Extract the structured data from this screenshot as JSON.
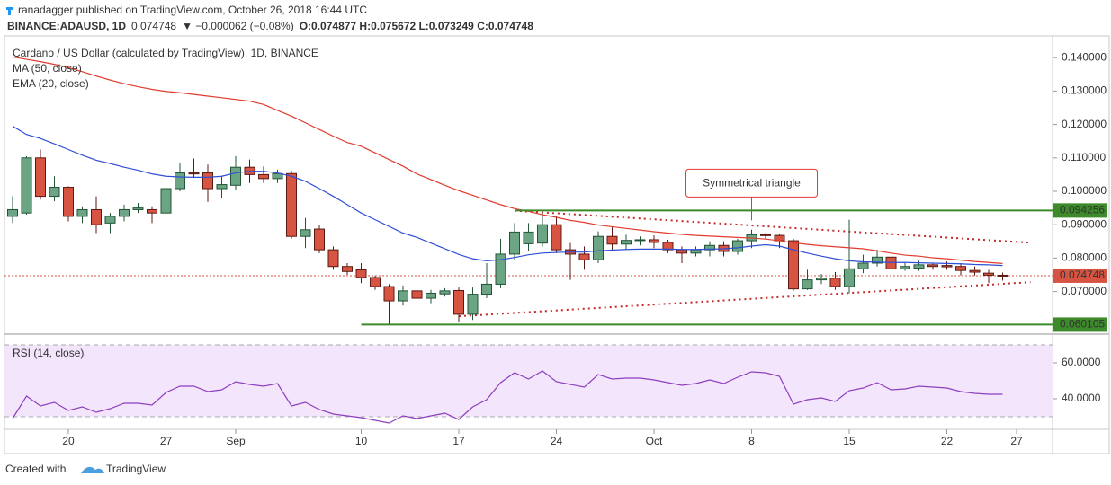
{
  "header": {
    "author": "ranadagger published on TradingView.com, October 26, 2018 16:44 UTC",
    "symbol": "BINANCE:ADAUSD, 1D",
    "last": "0.074748",
    "change": "▼ −0.000062 (−0.08%)",
    "ohlc": "O:0.074877 H:0.075672 L:0.073249 C:0.074748"
  },
  "footer": {
    "created": "Created with",
    "brand": "TradingView"
  },
  "chart_data": {
    "type": "candlestick",
    "title": "Cardano / US Dollar (calculated by TradingView), 1D, BINANCE",
    "up_color": "#6ba583",
    "down_color": "#d75442",
    "x": [
      "2018-08-16",
      "2018-08-17",
      "2018-08-18",
      "2018-08-19",
      "2018-08-20",
      "2018-08-21",
      "2018-08-22",
      "2018-08-23",
      "2018-08-24",
      "2018-08-25",
      "2018-08-26",
      "2018-08-27",
      "2018-08-28",
      "2018-08-29",
      "2018-08-30",
      "2018-08-31",
      "2018-09-01",
      "2018-09-02",
      "2018-09-03",
      "2018-09-04",
      "2018-09-05",
      "2018-09-06",
      "2018-09-07",
      "2018-09-08",
      "2018-09-09",
      "2018-09-10",
      "2018-09-11",
      "2018-09-12",
      "2018-09-13",
      "2018-09-14",
      "2018-09-15",
      "2018-09-16",
      "2018-09-17",
      "2018-09-18",
      "2018-09-19",
      "2018-09-20",
      "2018-09-21",
      "2018-09-22",
      "2018-09-23",
      "2018-09-24",
      "2018-09-25",
      "2018-09-26",
      "2018-09-27",
      "2018-09-28",
      "2018-09-29",
      "2018-09-30",
      "2018-10-01",
      "2018-10-02",
      "2018-10-03",
      "2018-10-04",
      "2018-10-05",
      "2018-10-06",
      "2018-10-07",
      "2018-10-08",
      "2018-10-09",
      "2018-10-10",
      "2018-10-11",
      "2018-10-12",
      "2018-10-13",
      "2018-10-14",
      "2018-10-15",
      "2018-10-16",
      "2018-10-17",
      "2018-10-18",
      "2018-10-19",
      "2018-10-20",
      "2018-10-21",
      "2018-10-22",
      "2018-10-23",
      "2018-10-24",
      "2018-10-25",
      "2018-10-26"
    ],
    "open": [
      0.0925,
      0.0935,
      0.11,
      0.0985,
      0.1012,
      0.0925,
      0.0945,
      0.0905,
      0.0925,
      0.0945,
      0.0945,
      0.0935,
      0.1008,
      0.1055,
      0.1055,
      0.1008,
      0.1018,
      0.1072,
      0.105,
      0.1038,
      0.1053,
      0.0865,
      0.0887,
      0.0825,
      0.0775,
      0.0765,
      0.0742,
      0.0715,
      0.0672,
      0.0702,
      0.068,
      0.0693,
      0.0703,
      0.0632,
      0.0692,
      0.0722,
      0.0812,
      0.0843,
      0.0845,
      0.09,
      0.0825,
      0.0812,
      0.0795,
      0.0865,
      0.0842,
      0.0853,
      0.0855,
      0.0847,
      0.0825,
      0.0815,
      0.0825,
      0.0838,
      0.082,
      0.0852,
      0.087,
      0.0868,
      0.0852,
      0.0708,
      0.0735,
      0.074,
      0.0715,
      0.0768,
      0.0785,
      0.0803,
      0.0768,
      0.077,
      0.078,
      0.0778,
      0.0775,
      0.0763,
      0.0755,
      0.074877
    ],
    "high": [
      0.0985,
      0.1105,
      0.1125,
      0.1045,
      0.1015,
      0.0955,
      0.0985,
      0.0935,
      0.096,
      0.0965,
      0.0955,
      0.1025,
      0.1085,
      0.1098,
      0.108,
      0.1045,
      0.1105,
      0.1095,
      0.1075,
      0.1065,
      0.1062,
      0.092,
      0.09,
      0.0835,
      0.0785,
      0.0785,
      0.0748,
      0.0722,
      0.0718,
      0.0715,
      0.0705,
      0.071,
      0.0712,
      0.0712,
      0.0785,
      0.0858,
      0.0905,
      0.0905,
      0.0935,
      0.0925,
      0.0845,
      0.0835,
      0.088,
      0.0895,
      0.087,
      0.0865,
      0.0868,
      0.0855,
      0.0835,
      0.0835,
      0.085,
      0.085,
      0.0858,
      0.0885,
      0.0875,
      0.0872,
      0.0858,
      0.0765,
      0.0752,
      0.0758,
      0.0915,
      0.081,
      0.0825,
      0.0812,
      0.0785,
      0.0792,
      0.0785,
      0.079,
      0.0785,
      0.0775,
      0.0765,
      0.075672
    ],
    "low": [
      0.0905,
      0.093,
      0.0975,
      0.097,
      0.091,
      0.0905,
      0.0875,
      0.0875,
      0.091,
      0.0935,
      0.0905,
      0.0925,
      0.1,
      0.104,
      0.0968,
      0.098,
      0.1005,
      0.1025,
      0.1025,
      0.1025,
      0.0858,
      0.083,
      0.0815,
      0.0765,
      0.075,
      0.0725,
      0.0705,
      0.0602,
      0.0658,
      0.0655,
      0.0665,
      0.0685,
      0.0608,
      0.0615,
      0.068,
      0.071,
      0.0795,
      0.0822,
      0.0835,
      0.0815,
      0.0735,
      0.0765,
      0.0785,
      0.0825,
      0.0825,
      0.0838,
      0.083,
      0.0815,
      0.0785,
      0.0805,
      0.0805,
      0.0805,
      0.081,
      0.083,
      0.0858,
      0.083,
      0.0702,
      0.0705,
      0.0722,
      0.0705,
      0.0695,
      0.0755,
      0.0775,
      0.0755,
      0.0762,
      0.0762,
      0.0765,
      0.0765,
      0.0748,
      0.0748,
      0.0725,
      0.073249
    ],
    "close": [
      0.0945,
      0.11,
      0.0985,
      0.1012,
      0.0925,
      0.0945,
      0.09,
      0.0925,
      0.0945,
      0.095,
      0.0935,
      0.1008,
      0.1055,
      0.1052,
      0.1008,
      0.102,
      0.1072,
      0.105,
      0.1038,
      0.1053,
      0.0865,
      0.0885,
      0.0825,
      0.0775,
      0.076,
      0.0742,
      0.0715,
      0.0672,
      0.0702,
      0.068,
      0.0695,
      0.0702,
      0.0632,
      0.0692,
      0.0722,
      0.0812,
      0.0878,
      0.0878,
      0.09,
      0.0825,
      0.0812,
      0.0795,
      0.0865,
      0.0842,
      0.0853,
      0.0855,
      0.0847,
      0.0825,
      0.0815,
      0.0825,
      0.0838,
      0.082,
      0.0852,
      0.087,
      0.0868,
      0.0852,
      0.0708,
      0.0735,
      0.074,
      0.0715,
      0.0768,
      0.0785,
      0.0803,
      0.0768,
      0.0775,
      0.078,
      0.0775,
      0.0774,
      0.0763,
      0.0758,
      0.0749,
      0.074748
    ],
    "series": [
      {
        "name": "MA (50, close)",
        "color": "#e23b2e",
        "values": [
          0.1402,
          0.1395,
          0.1388,
          0.138,
          0.137,
          0.1358,
          0.1345,
          0.1333,
          0.1322,
          0.1313,
          0.1305,
          0.1299,
          0.1295,
          0.129,
          0.1285,
          0.128,
          0.1275,
          0.127,
          0.126,
          0.1242,
          0.1225,
          0.1205,
          0.1185,
          0.1165,
          0.1146,
          0.1135,
          0.1115,
          0.1095,
          0.1075,
          0.1052,
          0.1035,
          0.1018,
          0.1002,
          0.0988,
          0.0974,
          0.096,
          0.0948,
          0.094,
          0.093,
          0.0922,
          0.0913,
          0.0907,
          0.0899,
          0.0894,
          0.0889,
          0.0884,
          0.0879,
          0.0875,
          0.0871,
          0.0868,
          0.0866,
          0.0864,
          0.0862,
          0.086,
          0.0857,
          0.0852,
          0.0846,
          0.0841,
          0.0837,
          0.0834,
          0.0831,
          0.0828,
          0.0822,
          0.0815,
          0.0809,
          0.0806,
          0.0801,
          0.0798,
          0.0794,
          0.079,
          0.0787,
          0.0784
        ]
      },
      {
        "name": "EMA (20, close)",
        "color": "#2f4fd6",
        "values": [
          0.1195,
          0.117,
          0.1158,
          0.1142,
          0.1125,
          0.1108,
          0.1093,
          0.1083,
          0.1072,
          0.1063,
          0.1052,
          0.1045,
          0.1043,
          0.1042,
          0.1042,
          0.1045,
          0.1055,
          0.106,
          0.106,
          0.1055,
          0.1045,
          0.103,
          0.1008,
          0.0985,
          0.096,
          0.0935,
          0.0915,
          0.0895,
          0.0875,
          0.0862,
          0.0845,
          0.0828,
          0.0811,
          0.0798,
          0.0792,
          0.0795,
          0.0802,
          0.081,
          0.0815,
          0.0817,
          0.0818,
          0.0818,
          0.0822,
          0.0824,
          0.0826,
          0.0827,
          0.0827,
          0.0827,
          0.0826,
          0.0826,
          0.0827,
          0.0828,
          0.0831,
          0.0836,
          0.084,
          0.0836,
          0.0825,
          0.0815,
          0.0806,
          0.0798,
          0.0792,
          0.0789,
          0.0788,
          0.0787,
          0.0787,
          0.0786,
          0.0785,
          0.0784,
          0.0783,
          0.0781,
          0.078,
          0.0778
        ]
      }
    ],
    "xlim": [
      "2018-08-15",
      "2018-10-30"
    ],
    "xticks": [
      {
        "value": "2018-08-20",
        "label": "20"
      },
      {
        "value": "2018-08-27",
        "label": "27"
      },
      {
        "value": "2018-09-01",
        "label": "Sep"
      },
      {
        "value": "2018-09-10",
        "label": "10"
      },
      {
        "value": "2018-09-17",
        "label": "17"
      },
      {
        "value": "2018-09-24",
        "label": "24"
      },
      {
        "value": "2018-10-01",
        "label": "Oct"
      },
      {
        "value": "2018-10-08",
        "label": "8"
      },
      {
        "value": "2018-10-15",
        "label": "15"
      },
      {
        "value": "2018-10-22",
        "label": "22"
      },
      {
        "value": "2018-10-27",
        "label": "27"
      }
    ],
    "ylim": [
      0.0578,
      0.1465
    ],
    "yticks": [
      {
        "value": 0.07,
        "label": "0.070000"
      },
      {
        "value": 0.08,
        "label": "0.080000"
      },
      {
        "value": 0.09,
        "label": "0.090000"
      },
      {
        "value": 0.1,
        "label": "0.100000"
      },
      {
        "value": 0.11,
        "label": "0.110000"
      },
      {
        "value": 0.12,
        "label": "0.120000"
      },
      {
        "value": 0.13,
        "label": "0.130000"
      },
      {
        "value": 0.14,
        "label": "0.140000"
      }
    ],
    "levels": [
      {
        "value": 0.094256,
        "start": "2018-09-21",
        "color": "#3c8a2a"
      },
      {
        "value": 0.060105,
        "start": "2018-09-10",
        "color": "#3c8a2a"
      }
    ],
    "trendlines": [
      {
        "x": [
          "2018-09-21",
          "2018-10-28"
        ],
        "y": [
          0.0942,
          0.0846
        ],
        "color": "#c62828"
      },
      {
        "x": [
          "2018-09-17",
          "2018-10-28"
        ],
        "y": [
          0.0626,
          0.0728
        ],
        "color": "#c62828"
      }
    ],
    "annotation": {
      "text": "Symmetrical triangle",
      "x": "2018-10-08",
      "y": 0.0913,
      "color": "#e53935"
    },
    "rsi": {
      "name": "RSI (14, close)",
      "color": "#8e3fbf",
      "band_color": "#f3e5fb",
      "values": [
        29,
        41.5,
        36,
        38,
        33.5,
        35.5,
        32.5,
        34.5,
        37.5,
        37.5,
        36.5,
        43.5,
        47,
        47,
        44,
        45,
        49.5,
        48,
        47,
        48.5,
        36,
        38,
        34,
        31.5,
        30.5,
        29.5,
        28,
        26.5,
        30.5,
        29,
        30.5,
        32,
        28.5,
        35.5,
        39.5,
        49,
        54.5,
        51,
        55.5,
        49.5,
        48,
        46.5,
        53.5,
        51,
        51.5,
        51.5,
        50.5,
        49,
        47.5,
        48.5,
        50.5,
        48.5,
        52,
        55,
        54.5,
        52.5,
        37,
        39.5,
        40.5,
        38.5,
        44.5,
        46,
        49,
        45,
        45.5,
        47,
        46.5,
        46,
        44,
        43,
        42.5,
        42.5
      ],
      "ylim": [
        23,
        75.5
      ],
      "bands": [
        30,
        70
      ],
      "yticks": [
        {
          "value": 40,
          "label": "40.0000"
        },
        {
          "value": 60,
          "label": "60.0000"
        }
      ]
    }
  }
}
